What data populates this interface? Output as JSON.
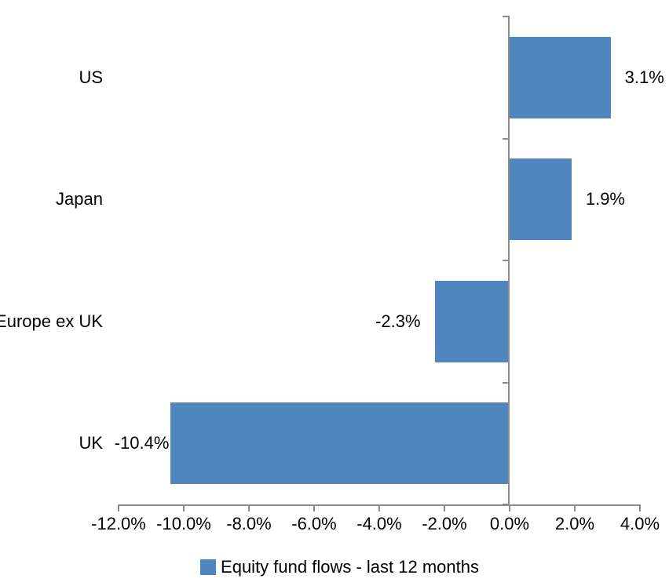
{
  "chart_data": {
    "type": "bar",
    "orientation": "horizontal",
    "categories": [
      "US",
      "Japan",
      "Europe ex UK",
      "UK"
    ],
    "values": [
      3.1,
      1.9,
      -2.3,
      -10.4
    ],
    "data_labels": [
      "3.1%",
      "1.9%",
      "-2.3%",
      "-10.4%"
    ],
    "series_name": "Equity fund flows - last 12 months",
    "xlim": [
      -12,
      4
    ],
    "xticks": [
      -12,
      -10,
      -8,
      -6,
      -4,
      -2,
      0,
      2,
      4
    ],
    "xtick_labels": [
      "-12.0%",
      "-10.0%",
      "-8.0%",
      "-6.0%",
      "-4.0%",
      "-2.0%",
      "0.0%",
      "2.0%",
      "4.0%"
    ],
    "grid": false,
    "legend_position": "bottom",
    "bar_color": "#4E86BD",
    "axis_color": "#8C8C8C",
    "text_color": "#000000"
  },
  "legend": {
    "label": "Equity fund flows - last 12 months",
    "marker": "square-icon"
  }
}
